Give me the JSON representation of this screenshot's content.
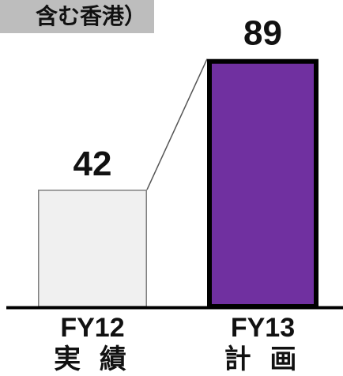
{
  "chart_data": {
    "type": "bar",
    "title": "含む香港）",
    "categories": [
      "FY12",
      "FY13"
    ],
    "category_sublabels": [
      "実 績",
      "計 画"
    ],
    "values": [
      42,
      89
    ],
    "data_labels": [
      "42",
      "89"
    ],
    "ylim": [
      0,
      100
    ],
    "grid": false,
    "legend": "none",
    "colors": {
      "bar_fills": [
        "#f0f0f0",
        "#7030a0"
      ],
      "bar_strokes": [
        "#7f7f7f",
        "#000000"
      ],
      "axis": "#000000",
      "connector": "#555555",
      "title_bg": "#bdbdbd"
    }
  }
}
